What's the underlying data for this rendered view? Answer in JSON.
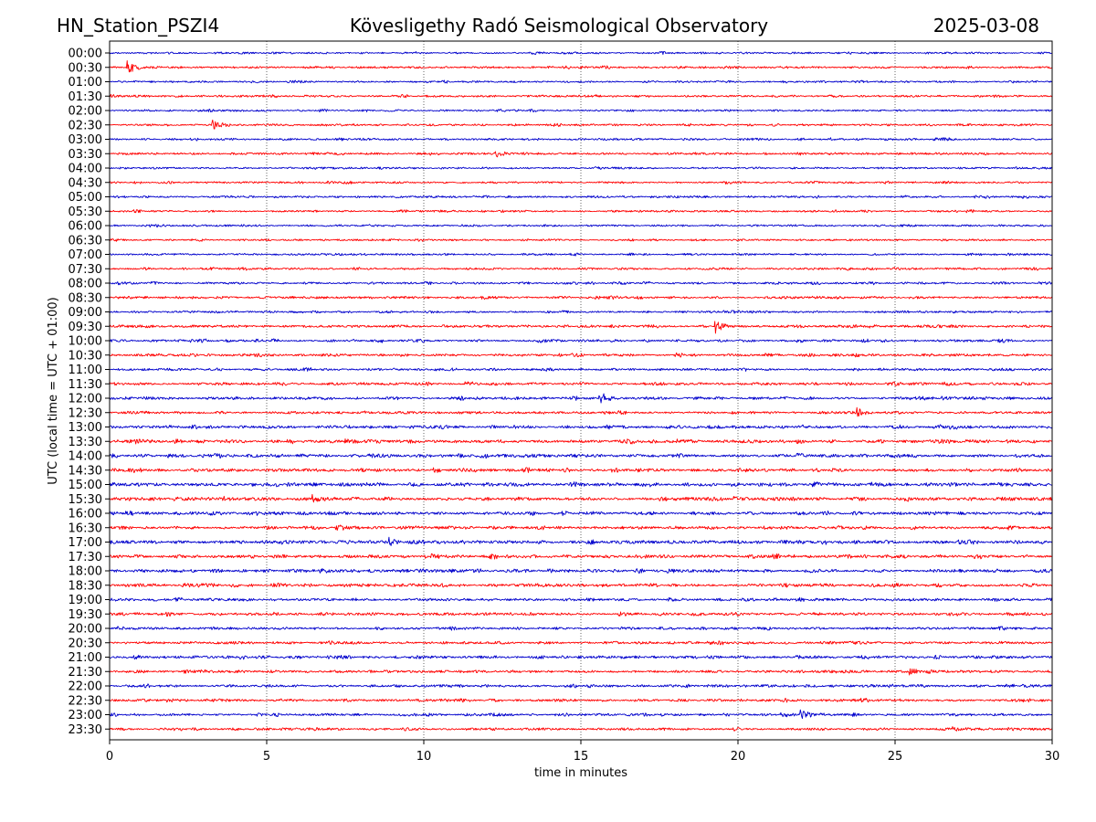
{
  "header": {
    "station": "HN_Station_PSZI4",
    "observatory": "Kövesligethy Radó Seismological Observatory",
    "date": "2025-03-08"
  },
  "chart_data": {
    "type": "line",
    "title": "Kövesligethy Radó Seismological Observatory",
    "xlabel": "time in minutes",
    "ylabel": "UTC (local time = UTC + 01:00)",
    "xlim": [
      0,
      30
    ],
    "x_ticks": [
      0,
      5,
      10,
      15,
      20,
      25,
      30
    ],
    "grid": "vertical dotted lines at each x tick",
    "series_colors": [
      "#0000cc",
      "#ff0000"
    ],
    "row_labels": [
      "00:00",
      "00:30",
      "01:00",
      "01:30",
      "02:00",
      "02:30",
      "03:00",
      "03:30",
      "04:00",
      "04:30",
      "05:00",
      "05:30",
      "06:00",
      "06:30",
      "07:00",
      "07:30",
      "08:00",
      "08:30",
      "09:00",
      "09:30",
      "10:00",
      "10:30",
      "11:00",
      "11:30",
      "12:00",
      "12:30",
      "13:00",
      "13:30",
      "14:00",
      "14:30",
      "15:00",
      "15:30",
      "16:00",
      "16:30",
      "17:00",
      "17:30",
      "18:00",
      "18:30",
      "19:00",
      "19:30",
      "20:00",
      "20:30",
      "21:00",
      "21:30",
      "22:00",
      "22:30",
      "23:00",
      "23:30"
    ],
    "activity_level": [
      0.5,
      0.55,
      0.5,
      0.55,
      0.5,
      0.55,
      0.55,
      0.55,
      0.5,
      0.5,
      0.55,
      0.5,
      0.5,
      0.5,
      0.5,
      0.55,
      0.55,
      0.6,
      0.55,
      0.7,
      0.65,
      0.75,
      0.65,
      0.75,
      0.75,
      0.7,
      0.8,
      0.9,
      0.85,
      0.9,
      0.9,
      0.9,
      0.9,
      0.85,
      0.9,
      0.85,
      0.85,
      0.85,
      0.75,
      0.75,
      0.7,
      0.7,
      0.75,
      0.7,
      0.7,
      0.7,
      0.7,
      0.65
    ],
    "events": [
      {
        "row": 1,
        "minute": 0.6,
        "strength": 3.0
      },
      {
        "row": 5,
        "minute": 3.3,
        "strength": 2.2
      },
      {
        "row": 7,
        "minute": 12.3,
        "strength": 1.8
      },
      {
        "row": 19,
        "minute": 19.3,
        "strength": 3.2
      },
      {
        "row": 24,
        "minute": 15.6,
        "strength": 3.0
      },
      {
        "row": 25,
        "minute": 23.8,
        "strength": 2.0
      },
      {
        "row": 31,
        "minute": 6.5,
        "strength": 2.0
      },
      {
        "row": 34,
        "minute": 8.9,
        "strength": 1.8
      },
      {
        "row": 43,
        "minute": 25.5,
        "strength": 1.6
      },
      {
        "row": 46,
        "minute": 22.0,
        "strength": 2.6
      },
      {
        "row": 47,
        "minute": 26.8,
        "strength": 1.6
      }
    ]
  }
}
